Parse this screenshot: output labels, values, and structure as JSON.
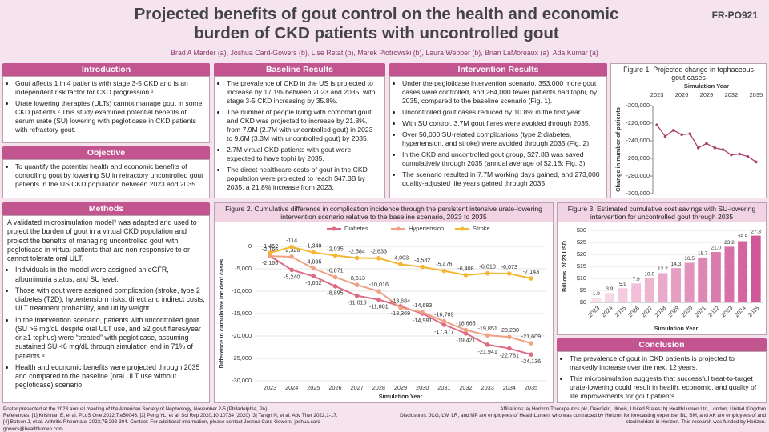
{
  "header": {
    "title": "Projected benefits of gout control on the health and economic burden of CKD patients with uncontrolled gout",
    "poster_id": "FR-PO921",
    "authors": "Brad A Marder (a), Joshua Card-Gowers (b), Lise Retat (b), Marek Piotrowski (b), Laura Webber (b), Brian LaMoreaux (a), Ada Kumar (a)"
  },
  "introduction": {
    "heading": "Introduction",
    "bullets": [
      "Gout affects 1 in 4 patients with stage 3-5 CKD and is an independent risk factor for CKD progression.¹",
      "Urate lowering therapies (ULTs) cannot manage gout in some CKD patients.² This study examined potential benefits of serum urate (SU) lowering with pegloticase in CKD patients with refractory gout."
    ]
  },
  "objective": {
    "heading": "Objective",
    "bullets": [
      "To quantify the potential health and economic benefits of controlling gout by lowering SU in refractory uncontrolled gout patients in the US CKD population between 2023 and 2035."
    ]
  },
  "methods": {
    "heading": "Methods",
    "intro": "A validated microsimulation model³ was adapted and used to project the burden of gout in a virtual CKD population and project the benefits of managing uncontrolled gout with pegloticase in virtual patients that are non-responsive to or cannot tolerate oral ULT.",
    "bullets": [
      "Individuals in the model were assigned an eGFR, albuminuria status, and SU level.",
      "Those with gout were assigned complication (stroke, type 2 diabetes (T2D), hypertension) risks, direct and indirect costs, ULT treatment probability, and utility weight.",
      "In the intervention scenario, patients with uncontrolled gout (SU >6 mg/dL despite oral ULT use, and ≥2 gout flares/year or ≥1 tophus) were “treated” with pegloticase, assuming sustained SU <6 mg/dL through simulation end in 71% of patients.⁴",
      "Health and economic benefits were projected through 2035 and compared to the baseline (oral ULT use without pegloticase) scenario."
    ]
  },
  "baseline_results": {
    "heading": "Baseline Results",
    "bullets": [
      "The prevalence of CKD in the US is projected to increase by 17.1% between 2023 and 2035, with stage 3-5 CKD increasing by 35.8%.",
      "The number of people living with comorbid gout and CKD was projected to increase by 21.8%, from 7.9M (2.7M with uncontrolled gout) in 2023 to 9.6M (3.3M with uncontrolled gout) by 2035.",
      "2.7M virtual CKD patients with gout were expected to have tophi by 2035.",
      "The direct healthcare costs of gout in the CKD population were projected to reach $47.3B by 2035, a 21.8% increase from 2023."
    ]
  },
  "intervention_results": {
    "heading": "Intervention Results",
    "bullets": [
      "Under the pegloticase intervention scenario, 353,000 more gout cases were controlled, and 264,000 fewer patients had tophi, by 2035, compared to the baseline scenario (Fig. 1).",
      "Uncontrolled gout cases reduced by 10.8% in the first year.",
      "With SU control, 3.7M gout flares were avoided through 2035.",
      "Over 50,000 SU-related complications (type 2 diabetes, hypertension, and stroke) were avoided through 2035 (Fig. 2).",
      "In the CKD and uncontrolled gout group, $27.8B was saved cumulatively through 2035 (annual average of $2.1B; Fig. 3)",
      "The scenario resulted in 7.7M working days gained, and 273,000 quality-adjusted life years gained through 2035."
    ]
  },
  "conclusion": {
    "heading": "Conclusion",
    "bullets": [
      "The prevalence of gout in CKD patients is projected to markedly increase over the next 12 years.",
      "This microsimulation suggests that successful treat-to-target urate-lowering could result in health, economic, and quality of life improvements for gout patients."
    ]
  },
  "footer": {
    "left": [
      "Poster presented at the 2023 annual meeting of the American Society of Nephrology, November 2-5 (Philadelphia, PA)",
      "References: [1] Krishnan E, et al. PLoS One 2012;7:e50046. [2] Peng YL, et al. Sci Rep 2020;10:10734 (2020) [3] Tangri N, et al. Adv Ther 2022;1-17.",
      "[4] Botson J, et al. Arthritis Rheumatol 2023;75:293-304. Contact: For additional information, please contact Joshua Card-Gowers: joshua.card-gowers@healthlumen.com"
    ],
    "right": [
      "Affiliations: a) Horizon Therapeutics plc, Deerfield, Illinois, United States; b) HealthLumen Ltd, London, United Kingdom",
      "Disclosures: JCG, LW, LR, and MP are employees of HealthLumen, who was contracted by Horizon for forecasting expertise. BL, BM, and AK are employees of and stockholders in Horizon. This research was funded by Horizon."
    ]
  },
  "chart_data": [
    {
      "type": "line",
      "title": "Figure 1. Projected change in tophaceous gout cases",
      "x_label": "Simulation Year",
      "y_label": "Change in number of patients",
      "x": [
        2023,
        2024,
        2025,
        2026,
        2027,
        2028,
        2029,
        2030,
        2031,
        2032,
        2033,
        2034,
        2035
      ],
      "xlim": [
        2022.5,
        2035.5
      ],
      "xticks": [
        2023,
        2026,
        2029,
        2032,
        2035
      ],
      "ylim": [
        -300000,
        -200000
      ],
      "yticks": [
        {
          "value": -200000,
          "label": "-200,000"
        },
        {
          "value": -220000,
          "label": "-220,000"
        },
        {
          "value": -240000,
          "label": "-240,000"
        },
        {
          "value": -260000,
          "label": "-260,000"
        },
        {
          "value": -280000,
          "label": "-280,000"
        },
        {
          "value": -300000,
          "label": "-300,000"
        }
      ],
      "grid": false,
      "series": [
        {
          "color": "#a8436f",
          "values": [
            -222000,
            -235000,
            -228000,
            -233000,
            -232000,
            -248000,
            -243000,
            -248000,
            -250000,
            -256000,
            -255000,
            -258000,
            -264000
          ]
        }
      ]
    },
    {
      "type": "line",
      "title": "Figure 2. Cumulative difference in complication incidence through the persistent intensive urate-lowering intervention scenario relative to the baseline scenario, 2023 to 2035",
      "x_label": "Simulation Year",
      "y_label": "Difference in cumulative incident cases",
      "x": [
        2023,
        2024,
        2025,
        2026,
        2027,
        2028,
        2029,
        2030,
        2031,
        2032,
        2033,
        2034,
        2035
      ],
      "xlim": [
        2022.3,
        2035.7
      ],
      "xticks": [
        2023,
        2024,
        2025,
        2026,
        2027,
        2028,
        2029,
        2030,
        2031,
        2032,
        2033,
        2034,
        2035
      ],
      "ylim": [
        -30000,
        0
      ],
      "yticks": [
        0,
        {
          "value": -5000,
          "label": "-5,000"
        },
        {
          "value": -10000,
          "label": "-10,000"
        },
        {
          "value": -15000,
          "label": "-15,000"
        },
        {
          "value": -20000,
          "label": "-20,000"
        },
        {
          "value": -25000,
          "label": "-25,000"
        },
        {
          "value": -30000,
          "label": "-30,000"
        }
      ],
      "grid": true,
      "legend": "top",
      "series": [
        {
          "name": "Diabetes",
          "color": "#dd6b84",
          "values": [
            -2166,
            -5240,
            -6662,
            -8895,
            -11018,
            -11881,
            -13369,
            -14981,
            -17477,
            -19421,
            -21941,
            -22781,
            -24136
          ],
          "value_labels": [
            "-2,166",
            "-5,240",
            "-6,662",
            "-8,895",
            "-11,018",
            "-11,881",
            "-13,369",
            "-14,981",
            "-17,477",
            "-19,421",
            "-21,941",
            "-22,781",
            "-24,136"
          ]
        },
        {
          "name": "Hypertension",
          "color": "#f0a083",
          "values": [
            -2166,
            -2326,
            -4935,
            -6871,
            -8613,
            -10016,
            -13684,
            -14683,
            -16709,
            -18665,
            -19851,
            -20230,
            -21609
          ],
          "value_labels": [
            "-2,166",
            "-2,326",
            "-4,935",
            "-6,871",
            "-8,613",
            "-10,016",
            "-13,684",
            "-14,683",
            "-16,709",
            "-18,665",
            "-19,851",
            "-20,230",
            "-21,609"
          ]
        },
        {
          "name": "Stroke",
          "color": "#f5b733",
          "values": [
            -1452,
            -114,
            -1349,
            -2035,
            -2584,
            -2633,
            -4003,
            -4582,
            -5476,
            -6408,
            -6010,
            -6073,
            -7143
          ],
          "value_labels": [
            "-1,452",
            "-114",
            "-1,349",
            "-2,035",
            "-2,584",
            "-2,633",
            "-4,003",
            "-4,582",
            "-5,476",
            "-6,408",
            "-6,010",
            "-6,073",
            "-7,143"
          ]
        }
      ]
    },
    {
      "type": "bar",
      "title": "Figure 3. Estimated cumulative cost savings with SU-lowering intervention for uncontrolled gout through 2035",
      "x_label": "Simulation Year",
      "y_label": "Billions, 2023 USD",
      "categories": [
        "2023",
        "2024",
        "2025",
        "2026",
        "2027",
        "2028",
        "2029",
        "2030",
        "2031",
        "2032",
        "2033",
        "2034",
        "2035"
      ],
      "ylim": [
        0,
        30
      ],
      "yticks": [
        {
          "value": 0,
          "label": "$0"
        },
        {
          "value": 5,
          "label": "$5"
        },
        {
          "value": 10,
          "label": "$10"
        },
        {
          "value": 15,
          "label": "$15"
        },
        {
          "value": 20,
          "label": "$20"
        },
        {
          "value": 25,
          "label": "$25"
        },
        {
          "value": 30,
          "label": "$30"
        }
      ],
      "grid": true,
      "colors": [
        "#f9e0eb",
        "#f7d6e5",
        "#f4cbdf",
        "#f1c0d8",
        "#eeb5d1",
        "#eaa9ca",
        "#e69ec3",
        "#e293bc",
        "#de87b5",
        "#da7cad",
        "#d770a6",
        "#d4649f",
        "#d15898"
      ],
      "values": [
        1.9,
        3.9,
        5.9,
        7.9,
        10.0,
        12.2,
        14.3,
        16.5,
        18.7,
        21.0,
        23.2,
        25.5,
        27.8
      ],
      "value_labels": [
        "1.9",
        "3.9",
        "5.9",
        "7.9",
        "10.0",
        "12.2",
        "14.3",
        "16.5",
        "18.7",
        "21.0",
        "23.2",
        "25.5",
        "27.8"
      ]
    }
  ]
}
